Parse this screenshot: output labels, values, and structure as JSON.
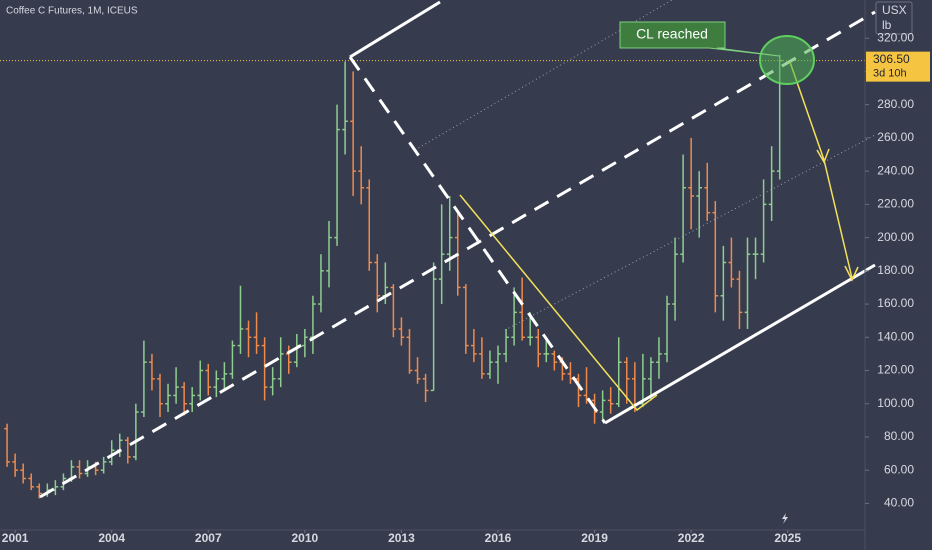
{
  "chart_data": {
    "type": "ohlc",
    "title": "Coffee C Futures, 1M, ICEUS",
    "currency": "USX",
    "unit": "lb",
    "annotation": "CL reached",
    "countdown": "3d 10h",
    "last_price": {
      "value": 306.5,
      "label": "306.50"
    },
    "up_color": "#8fce8f",
    "down_color": "#f08a4b",
    "last_price_color": "#f5c542",
    "x": [
      2000.75,
      2001,
      2001.25,
      2001.5,
      2001.75,
      2002,
      2002.25,
      2002.5,
      2002.75,
      2003,
      2003.25,
      2003.5,
      2003.75,
      2004,
      2004.25,
      2004.5,
      2004.75,
      2005,
      2005.25,
      2005.5,
      2005.75,
      2006,
      2006.25,
      2006.5,
      2006.75,
      2007,
      2007.25,
      2007.5,
      2007.75,
      2008,
      2008.25,
      2008.5,
      2008.75,
      2009,
      2009.25,
      2009.5,
      2009.75,
      2010,
      2010.25,
      2010.5,
      2010.75,
      2011,
      2011.25,
      2011.5,
      2011.75,
      2012,
      2012.25,
      2012.5,
      2012.75,
      2013,
      2013.25,
      2013.5,
      2013.75,
      2014,
      2014.25,
      2014.5,
      2014.75,
      2015,
      2015.25,
      2015.5,
      2015.75,
      2016,
      2016.25,
      2016.5,
      2016.75,
      2017,
      2017.25,
      2017.5,
      2017.75,
      2018,
      2018.25,
      2018.5,
      2018.75,
      2019,
      2019.25,
      2019.5,
      2019.75,
      2020,
      2020.25,
      2020.5,
      2020.75,
      2021,
      2021.25,
      2021.5,
      2021.75,
      2022,
      2022.25,
      2022.5,
      2022.75,
      2023,
      2023.25,
      2023.5,
      2023.75,
      2024,
      2024.25,
      2024.5,
      2024.75
    ],
    "open": [
      85,
      65,
      60,
      55,
      50,
      46,
      48,
      50,
      55,
      62,
      58,
      62,
      60,
      65,
      72,
      78,
      68,
      95,
      125,
      115,
      100,
      105,
      110,
      100,
      105,
      120,
      110,
      115,
      118,
      135,
      145,
      140,
      135,
      110,
      115,
      130,
      125,
      135,
      140,
      160,
      180,
      200,
      265,
      270,
      240,
      230,
      185,
      165,
      170,
      145,
      140,
      120,
      115,
      108,
      175,
      190,
      200,
      170,
      135,
      130,
      118,
      125,
      130,
      140,
      155,
      140,
      140,
      130,
      130,
      125,
      118,
      115,
      105,
      102,
      95,
      102,
      100,
      125,
      115,
      100,
      115,
      125,
      130,
      160,
      190,
      230,
      225,
      230,
      215,
      165,
      185,
      175,
      155,
      190,
      190,
      220,
      240
    ],
    "high": [
      88,
      70,
      64,
      58,
      52,
      52,
      54,
      58,
      66,
      66,
      66,
      65,
      68,
      78,
      82,
      80,
      100,
      138,
      130,
      118,
      112,
      122,
      113,
      110,
      126,
      124,
      120,
      125,
      138,
      171,
      150,
      155,
      140,
      122,
      140,
      135,
      142,
      145,
      165,
      190,
      210,
      280,
      306,
      300,
      255,
      235,
      190,
      185,
      172,
      152,
      145,
      128,
      118,
      185,
      220,
      225,
      215,
      172,
      145,
      140,
      132,
      135,
      145,
      170,
      176,
      155,
      145,
      140,
      132,
      128,
      125,
      118,
      122,
      106,
      108,
      110,
      140,
      128,
      125,
      130,
      128,
      140,
      165,
      200,
      250,
      260,
      240,
      245,
      222,
      195,
      200,
      180,
      200,
      200,
      235,
      255,
      310
    ],
    "low": [
      62,
      56,
      52,
      48,
      43,
      44,
      45,
      48,
      53,
      55,
      56,
      57,
      58,
      63,
      68,
      64,
      66,
      92,
      108,
      92,
      95,
      100,
      93,
      95,
      102,
      105,
      104,
      108,
      115,
      130,
      128,
      130,
      102,
      105,
      110,
      118,
      122,
      128,
      130,
      155,
      170,
      195,
      250,
      225,
      220,
      180,
      155,
      160,
      140,
      135,
      118,
      112,
      101,
      108,
      160,
      180,
      165,
      130,
      125,
      115,
      115,
      112,
      125,
      135,
      138,
      135,
      122,
      125,
      120,
      114,
      112,
      98,
      100,
      88,
      90,
      94,
      98,
      100,
      95,
      98,
      102,
      115,
      125,
      150,
      185,
      205,
      200,
      210,
      155,
      150,
      170,
      145,
      145,
      175,
      185,
      210,
      235
    ],
    "close": [
      65,
      60,
      55,
      50,
      46,
      48,
      50,
      55,
      62,
      58,
      62,
      60,
      65,
      72,
      78,
      68,
      95,
      125,
      115,
      100,
      105,
      110,
      100,
      105,
      120,
      110,
      115,
      118,
      135,
      145,
      140,
      135,
      110,
      115,
      130,
      125,
      135,
      140,
      160,
      180,
      200,
      265,
      270,
      240,
      230,
      185,
      165,
      170,
      145,
      140,
      120,
      115,
      108,
      175,
      190,
      200,
      170,
      135,
      130,
      118,
      125,
      130,
      140,
      155,
      140,
      140,
      130,
      130,
      125,
      118,
      115,
      105,
      102,
      95,
      102,
      100,
      125,
      115,
      100,
      115,
      125,
      130,
      160,
      190,
      230,
      225,
      230,
      215,
      165,
      185,
      175,
      155,
      190,
      190,
      220,
      240,
      306.5
    ],
    "xlim": [
      2000.53,
      2027.4
    ],
    "ylim": [
      24,
      343
    ],
    "xticks": [
      2001,
      2004,
      2007,
      2010,
      2013,
      2016,
      2019,
      2022,
      2025
    ],
    "yticks": [
      {
        "value": 40,
        "label": "40.00"
      },
      {
        "value": 60,
        "label": "60.00"
      },
      {
        "value": 80,
        "label": "80.00"
      },
      {
        "value": 100,
        "label": "100.00"
      },
      {
        "value": 120,
        "label": "120.00"
      },
      {
        "value": 140,
        "label": "140.00"
      },
      {
        "value": 160,
        "label": "160.00"
      },
      {
        "value": 180,
        "label": "180.00"
      },
      {
        "value": 200,
        "label": "200.00"
      },
      {
        "value": 220,
        "label": "220.00"
      },
      {
        "value": 240,
        "label": "240.00"
      },
      {
        "value": 260,
        "label": "260.00"
      },
      {
        "value": 280,
        "label": "280.00"
      },
      {
        "value": 300,
        "label": "300.00"
      },
      {
        "value": 320,
        "label": "320.00"
      }
    ]
  }
}
